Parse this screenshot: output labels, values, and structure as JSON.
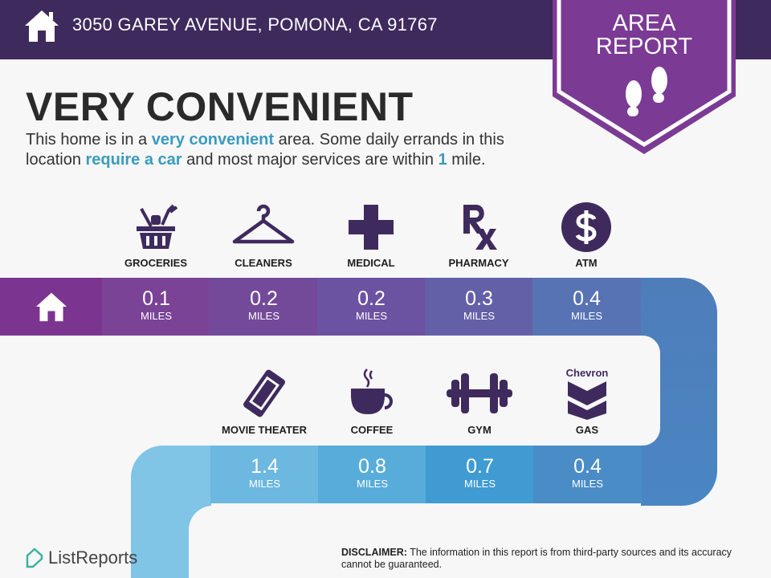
{
  "header": {
    "address": "3050 GAREY AVENUE, POMONA, CA 91767",
    "icon": "home-icon"
  },
  "badge": {
    "line1": "AREA",
    "line2": "REPORT",
    "icon": "footprints-icon"
  },
  "main": {
    "title": "VERY CONVENIENT",
    "desc": {
      "p1": "This home is in a ",
      "h1": "very convenient",
      "p2": " area. Some daily errands in this location ",
      "h2": "require a car",
      "p3": " and most major services are within ",
      "h3": "1",
      "p4": " mile."
    }
  },
  "top_row": [
    {
      "label": "GROCERIES",
      "value": "0.1",
      "unit": "MILES",
      "icon": "grocery-basket-icon",
      "color": "#7a4395"
    },
    {
      "label": "CLEANERS",
      "value": "0.2",
      "unit": "MILES",
      "icon": "hanger-icon",
      "color": "#734a99"
    },
    {
      "label": "MEDICAL",
      "value": "0.2",
      "unit": "MILES",
      "icon": "medical-cross-icon",
      "color": "#6c53a1"
    },
    {
      "label": "PHARMACY",
      "value": "0.3",
      "unit": "MILES",
      "icon": "rx-icon",
      "color": "#6460a8"
    },
    {
      "label": "ATM",
      "value": "0.4",
      "unit": "MILES",
      "icon": "dollar-icon",
      "color": "#5873b3"
    }
  ],
  "bottom_row": [
    {
      "label": "MOVIE THEATER",
      "value": "1.4",
      "unit": "MILES",
      "icon": "ticket-icon",
      "color": "#6db8e0"
    },
    {
      "label": "COFFEE",
      "value": "0.8",
      "unit": "MILES",
      "icon": "coffee-cup-icon",
      "color": "#58acd9"
    },
    {
      "label": "GYM",
      "value": "0.7",
      "unit": "MILES",
      "icon": "dumbbell-icon",
      "color": "#3f9bd2"
    },
    {
      "label": "GAS",
      "value": "0.4",
      "unit": "MILES",
      "icon": "chevron-logo-icon",
      "color": "#4a8cc6",
      "brand": "Chevron"
    }
  ],
  "footer": {
    "logo": "ListReports",
    "disclaimer_label": "DISCLAIMER:",
    "disclaimer": " The information in this report is from third-party sources and its accuracy cannot be guaranteed."
  },
  "colors": {
    "header": "#3f2a5e",
    "badge": "#7b3a94",
    "icon": "#3f2a5e",
    "highlight": "#3a9bbf"
  }
}
